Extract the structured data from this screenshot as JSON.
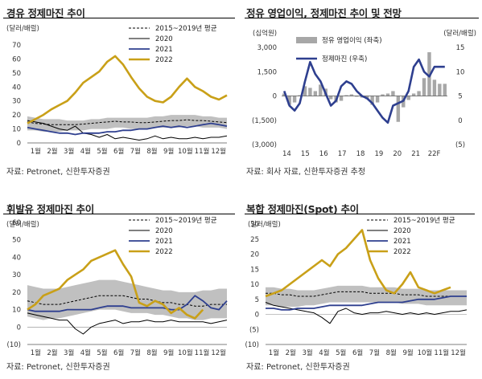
{
  "colors": {
    "y2020": "#000000",
    "y2021": "#2e3f8f",
    "y2022": "#c9a018",
    "avg": "#000000",
    "band": "#b5b5b5",
    "bar": "#a7a7a7",
    "margin_line": "#2e3f8f",
    "title_rule": "#000000"
  },
  "chart_data": [
    {
      "id": "diesel",
      "type": "line",
      "title": "경유 정제마진 추이",
      "unit": "(달러/배럴)",
      "source": "자료: Petronet, 신한투자증권",
      "ylim": [
        0,
        70
      ],
      "yticks": [
        "70",
        "60",
        "50",
        "40",
        "30",
        "20",
        "10",
        "0"
      ],
      "yticks_val": [
        70,
        60,
        50,
        40,
        30,
        20,
        10,
        0
      ],
      "xticks": [
        "1월",
        "2월",
        "3월",
        "4월",
        "5월",
        "6월",
        "7월",
        "8월",
        "9월",
        "10월",
        "11월",
        "12월"
      ],
      "legend": [
        "2015~2019년 평균",
        "2020",
        "2021",
        "2022"
      ],
      "series": [
        {
          "name": "2015~2019년 평균",
          "style": "dash",
          "values": [
            15,
            14,
            13.5,
            13,
            13,
            13,
            13,
            13.5,
            14,
            14.5,
            15,
            15.5,
            15,
            15,
            14.5,
            14.5,
            15,
            15.5,
            16,
            16,
            16.5,
            16,
            16,
            15.5,
            15,
            14.5
          ]
        },
        {
          "name": "2020",
          "style": "line2020",
          "values": [
            16,
            15,
            14,
            12,
            10,
            9,
            12,
            7,
            6,
            4,
            6,
            3,
            4,
            3,
            2,
            3,
            5,
            3,
            4,
            3,
            3,
            4,
            3,
            4,
            4,
            5
          ]
        },
        {
          "name": "2021",
          "style": "line2021",
          "values": [
            11,
            10,
            9,
            8,
            7,
            7,
            6,
            7,
            7,
            7,
            8,
            8,
            9,
            9,
            10,
            10,
            11,
            12,
            11,
            12,
            11,
            12,
            13,
            14,
            13,
            12
          ]
        },
        {
          "name": "2022",
          "style": "line2022",
          "values": [
            14,
            17,
            20,
            24,
            27,
            30,
            36,
            43,
            47,
            51,
            58,
            62,
            56,
            47,
            39,
            33,
            30,
            29,
            33,
            40,
            46,
            40,
            37,
            33,
            31,
            34
          ]
        }
      ],
      "band": {
        "low": [
          9,
          9,
          8,
          8,
          8,
          9,
          9,
          9,
          10,
          10,
          10,
          11,
          11,
          10,
          10,
          10,
          11,
          11,
          11,
          11,
          12,
          12,
          11,
          11,
          11,
          10
        ],
        "high": [
          19,
          18,
          17,
          17,
          17,
          16,
          16,
          16,
          17,
          17,
          18,
          18,
          18,
          18,
          18,
          18,
          19,
          19,
          20,
          20,
          20,
          20,
          19,
          19,
          18,
          18
        ]
      }
    },
    {
      "id": "forecast",
      "type": "bar+line",
      "title": "정유 영업이익, 정제마진 추이 및 전망",
      "unit_left": "(십억원)",
      "unit_right": "(달러/배럴)",
      "source": "자료: 회사 자료, 신한투자증권 추정",
      "ylim_left": [
        -3000,
        3000
      ],
      "yticks_left": [
        "3,000",
        "1,500",
        "0",
        "(1,500)",
        "(3,000)"
      ],
      "yticks_left_val": [
        3000,
        1500,
        0,
        -1500,
        -3000
      ],
      "ylim_right": [
        -5,
        15
      ],
      "yticks_right": [
        "15",
        "10",
        "5",
        "0",
        "(5)"
      ],
      "yticks_right_val": [
        15,
        10,
        5,
        0,
        -5
      ],
      "xticks": [
        "14",
        "15",
        "16",
        "17",
        "18",
        "19",
        "20",
        "21",
        "22F"
      ],
      "legend": [
        "정유 영업이익 (좌축)",
        "정제마진 (우축)"
      ],
      "bars": [
        150,
        -550,
        -400,
        50,
        600,
        500,
        300,
        700,
        450,
        -200,
        -400,
        -300,
        50,
        100,
        -50,
        -100,
        -200,
        -550,
        -400,
        100,
        150,
        300,
        -1600,
        -700,
        -250,
        150,
        300,
        1100,
        2700,
        1000,
        750,
        750
      ],
      "margin": [
        6.0,
        3.0,
        2.0,
        3.5,
        8.0,
        12.0,
        9.5,
        8.0,
        5.5,
        3.0,
        4.0,
        7.0,
        8.0,
        7.5,
        6.0,
        5.0,
        4.5,
        3.5,
        2.0,
        0.5,
        -0.5,
        3.0,
        3.5,
        4.0,
        6.0,
        11.0,
        12.5,
        10.0,
        9.0,
        11.0,
        11.0,
        11.0
      ]
    },
    {
      "id": "fueloil",
      "type": "line",
      "title": "휘발유 정제마진 추이",
      "unit": "(달러/배럴)",
      "source": "자료: Petronet, 신한투자증권",
      "ylim": [
        -10,
        60
      ],
      "yticks": [
        "60",
        "50",
        "40",
        "30",
        "20",
        "10",
        "0",
        "(10)"
      ],
      "yticks_val": [
        60,
        50,
        40,
        30,
        20,
        10,
        0,
        -10
      ],
      "xticks": [
        "1월",
        "2월",
        "3월",
        "4월",
        "5월",
        "6월",
        "7월",
        "8월",
        "9월",
        "10월",
        "11월",
        "12월"
      ],
      "legend": [
        "2015~2019년 평균",
        "2020",
        "2021",
        "2022"
      ],
      "series": [
        {
          "name": "2015~2019년 평균",
          "style": "dash",
          "values": [
            15,
            14,
            13,
            13,
            13,
            14,
            15,
            16,
            17,
            18,
            18,
            18,
            18,
            17,
            16,
            16,
            15,
            14,
            14,
            13,
            13,
            12,
            12,
            13,
            13,
            13
          ]
        },
        {
          "name": "2020",
          "style": "line2020",
          "values": [
            8,
            7,
            6,
            5,
            4,
            4,
            -1,
            -4,
            0,
            2,
            3,
            4,
            2,
            3,
            3,
            4,
            3,
            3,
            4,
            3,
            3,
            3,
            3,
            2,
            3,
            4
          ]
        },
        {
          "name": "2021",
          "style": "line2021",
          "values": [
            10,
            9,
            9,
            9,
            9,
            10,
            10,
            10,
            10,
            11,
            12,
            12,
            12,
            11,
            11,
            11,
            11,
            11,
            10,
            10,
            13,
            18,
            15,
            11,
            10,
            15
          ]
        },
        {
          "name": "2022",
          "style": "line2022",
          "values": [
            10,
            13,
            18,
            20,
            22,
            27,
            30,
            33,
            38,
            40,
            42,
            44,
            36,
            29,
            14,
            12,
            15,
            13,
            8,
            11,
            7,
            5,
            10,
            null,
            null,
            null
          ]
        }
      ],
      "band": {
        "low": [
          6,
          5,
          4,
          5,
          5,
          6,
          7,
          8,
          9,
          10,
          10,
          10,
          9,
          8,
          8,
          8,
          7,
          7,
          6,
          5,
          5,
          4,
          4,
          5,
          5,
          5
        ],
        "high": [
          24,
          23,
          22,
          22,
          22,
          23,
          24,
          25,
          26,
          27,
          27,
          27,
          26,
          25,
          24,
          23,
          22,
          21,
          21,
          20,
          20,
          20,
          21,
          21,
          22,
          22
        ]
      }
    },
    {
      "id": "composite",
      "type": "line",
      "title": "복합 정제마진(Spot) 추이",
      "unit": "(달러/배럴)",
      "source": "자료: Petronet, 신한투자증권",
      "ylim": [
        -10,
        30
      ],
      "yticks": [
        "30",
        "25",
        "20",
        "15",
        "10",
        "5",
        "0",
        "(5)",
        "(10)"
      ],
      "yticks_val": [
        30,
        25,
        20,
        15,
        10,
        5,
        0,
        -5,
        -10
      ],
      "xticks": [
        "1월",
        "2월",
        "3월",
        "4월",
        "5월",
        "6월",
        "7월",
        "8월",
        "9월",
        "10월",
        "11월",
        "12월"
      ],
      "legend": [
        "2015~2019년 평균",
        "2020",
        "2021",
        "2022"
      ],
      "series": [
        {
          "name": "2015~2019년 평균",
          "style": "dash",
          "values": [
            7,
            7,
            6.5,
            6.5,
            6,
            6,
            6,
            6.5,
            7,
            7.5,
            7.5,
            7.5,
            7.5,
            7,
            7,
            7,
            7,
            6.5,
            6.5,
            6.5,
            6,
            6,
            6,
            6,
            6,
            6
          ]
        },
        {
          "name": "2020",
          "style": "line2020",
          "values": [
            4,
            3,
            2.5,
            2,
            1.5,
            1,
            0.5,
            -1,
            -3,
            1,
            2,
            0.5,
            0,
            0.5,
            0.5,
            1,
            0.5,
            0,
            0.5,
            0,
            0.5,
            0,
            0.5,
            1,
            1,
            1.5
          ]
        },
        {
          "name": "2021",
          "style": "line2021",
          "values": [
            2,
            2,
            1.5,
            1.5,
            2,
            2,
            2,
            2.5,
            3,
            3,
            3,
            3,
            3,
            3.5,
            4,
            4,
            4,
            4,
            4.5,
            5,
            5,
            5,
            5.5,
            6,
            6,
            6
          ]
        },
        {
          "name": "2022",
          "style": "line2022",
          "values": [
            6,
            7,
            8,
            10,
            12,
            14,
            16,
            18,
            16,
            20,
            22,
            25,
            28,
            18,
            12,
            8,
            7,
            10,
            14,
            9,
            8,
            7,
            8,
            9,
            null,
            null
          ]
        }
      ],
      "band": {
        "low": [
          3,
          3,
          2.5,
          2.5,
          2.5,
          3,
          3,
          3.5,
          4,
          4,
          4,
          4,
          4,
          4,
          4,
          4,
          4,
          3.5,
          3.5,
          3.5,
          3,
          3,
          3,
          3,
          3,
          3
        ],
        "high": [
          9,
          9,
          8.5,
          8.5,
          8,
          8,
          8,
          8.5,
          9,
          9.5,
          9.5,
          9.5,
          9.5,
          9,
          9,
          9,
          9,
          8.5,
          8.5,
          8.5,
          8,
          8,
          8,
          8,
          8,
          8
        ]
      }
    }
  ]
}
